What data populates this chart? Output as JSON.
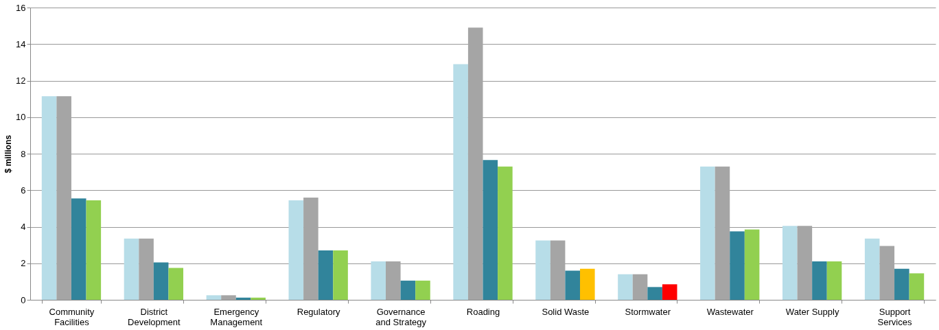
{
  "chart_data": {
    "type": "bar",
    "ylabel": "$ millions",
    "categories": [
      "Community Facilities",
      "District Development",
      "Emergency Management",
      "Regulatory",
      "Governance and Strategy",
      "Roading",
      "Solid Waste",
      "Stormwater",
      "Wastewater",
      "Water Supply",
      "Support Services"
    ],
    "series": [
      {
        "color": "#b7dde8",
        "values": [
          11.15,
          3.35,
          0.25,
          5.45,
          2.1,
          12.9,
          3.25,
          1.4,
          7.3,
          4.05,
          3.35
        ]
      },
      {
        "color": "#a5a5a5",
        "values": [
          11.15,
          3.35,
          0.25,
          5.6,
          2.1,
          14.9,
          3.25,
          1.4,
          7.3,
          4.05,
          2.95
        ]
      },
      {
        "color": "#31849b",
        "values": [
          5.55,
          2.05,
          0.12,
          2.7,
          1.05,
          7.65,
          1.6,
          0.7,
          3.75,
          2.1,
          1.7
        ]
      },
      {
        "colors": [
          "#92d050",
          "#92d050",
          "#92d050",
          "#92d050",
          "#92d050",
          "#92d050",
          "#ffc000",
          "#ff0000",
          "#92d050",
          "#92d050",
          "#92d050"
        ],
        "values": [
          5.45,
          1.75,
          0.12,
          2.7,
          1.05,
          7.3,
          1.7,
          0.85,
          3.85,
          2.1,
          1.45
        ]
      }
    ],
    "ylim": [
      0,
      16
    ],
    "yticks": [
      0,
      2,
      4,
      6,
      8,
      10,
      12,
      14,
      16
    ],
    "grid": "y"
  }
}
